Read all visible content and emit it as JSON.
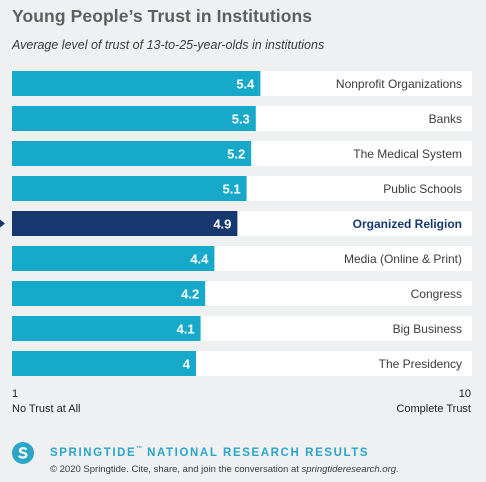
{
  "title": "Young People’s Trust in Institutions",
  "subtitle": "Average level of trust of 13-to-25-year-olds in institutions",
  "colors": {
    "bar": "#17a9c9",
    "highlight_bar": "#17386e",
    "track": "#ffffff",
    "label": "#3b3b3b",
    "highlight_label": "#17386e",
    "brand": "#2ba6c9"
  },
  "chart_data": {
    "type": "bar",
    "orientation": "horizontal",
    "categories": [
      "Nonprofit Organizations",
      "Banks",
      "The Medical System",
      "Public Schools",
      "Organized Religion",
      "Media (Online & Print)",
      "Congress",
      "Big Business",
      "The Presidency"
    ],
    "values": [
      5.4,
      5.3,
      5.2,
      5.1,
      4.9,
      4.4,
      4.2,
      4.1,
      4
    ],
    "value_labels": [
      "5.4",
      "5.3",
      "5.2",
      "5.1",
      "4.9",
      "4.4",
      "4.2",
      "4.1",
      "4"
    ],
    "highlight_index": 4,
    "xlim": [
      1,
      10
    ],
    "axis_min_label": "1",
    "axis_max_label": "10",
    "axis_min_caption": "No Trust at All",
    "axis_max_caption": "Complete Trust",
    "grid": false,
    "legend": "none"
  },
  "footer": {
    "brand": "SPRINGTIDE",
    "trademark": "™",
    "brand_suffix": " NATIONAL RESEARCH RESULTS",
    "copyright": "© 2020 Springtide. Cite, share, and join the conversation at ",
    "site": "springtideresearch.org",
    "period": "."
  }
}
